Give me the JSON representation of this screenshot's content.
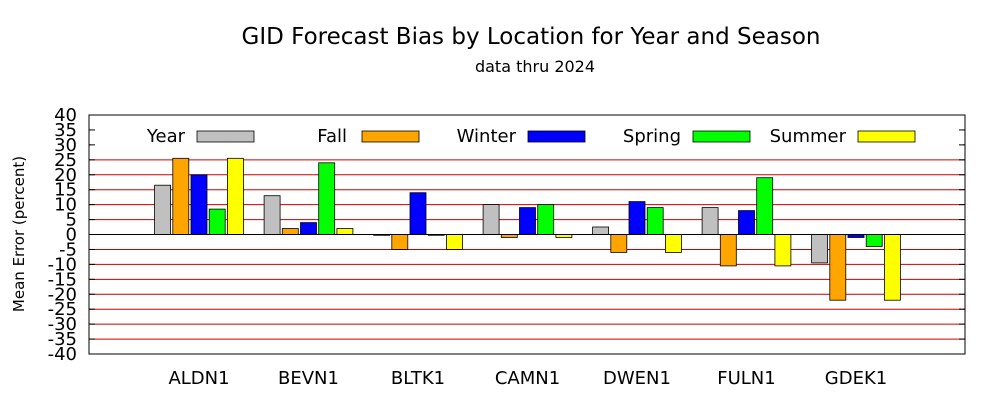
{
  "chart_data": {
    "type": "bar",
    "title": "GID Forecast Bias by Location for Year and Season",
    "subtitle": "data thru 2024",
    "ylabel": "Mean Error (percent)",
    "xlabel": "",
    "ylim": [
      -40,
      40
    ],
    "yticks": [
      40,
      35,
      30,
      25,
      20,
      15,
      10,
      5,
      0,
      -5,
      -10,
      -15,
      -20,
      -25,
      -30,
      -35,
      -40
    ],
    "grid": true,
    "grid_color": "#cc0000",
    "legend_position": "top",
    "categories": [
      "ALDN1",
      "BEVN1",
      "BLTK1",
      "CAMN1",
      "DWEN1",
      "FULN1",
      "GDEK1"
    ],
    "series": [
      {
        "name": "Year",
        "color": "#c0c0c0",
        "values": [
          16.5,
          13,
          0,
          10,
          2.5,
          9,
          -9.5
        ]
      },
      {
        "name": "Fall",
        "color": "#ffa500",
        "values": [
          25.5,
          2,
          -5,
          -1,
          -6,
          -10.5,
          -22
        ]
      },
      {
        "name": "Winter",
        "color": "#0000ff",
        "values": [
          20,
          4,
          14,
          9,
          11,
          8,
          -1
        ]
      },
      {
        "name": "Spring",
        "color": "#00ff00",
        "values": [
          8.5,
          24,
          0,
          10,
          9,
          19,
          -4
        ]
      },
      {
        "name": "Summer",
        "color": "#ffff00",
        "values": [
          25.5,
          2,
          -5,
          -1,
          -6,
          -10.5,
          -22
        ]
      }
    ]
  }
}
